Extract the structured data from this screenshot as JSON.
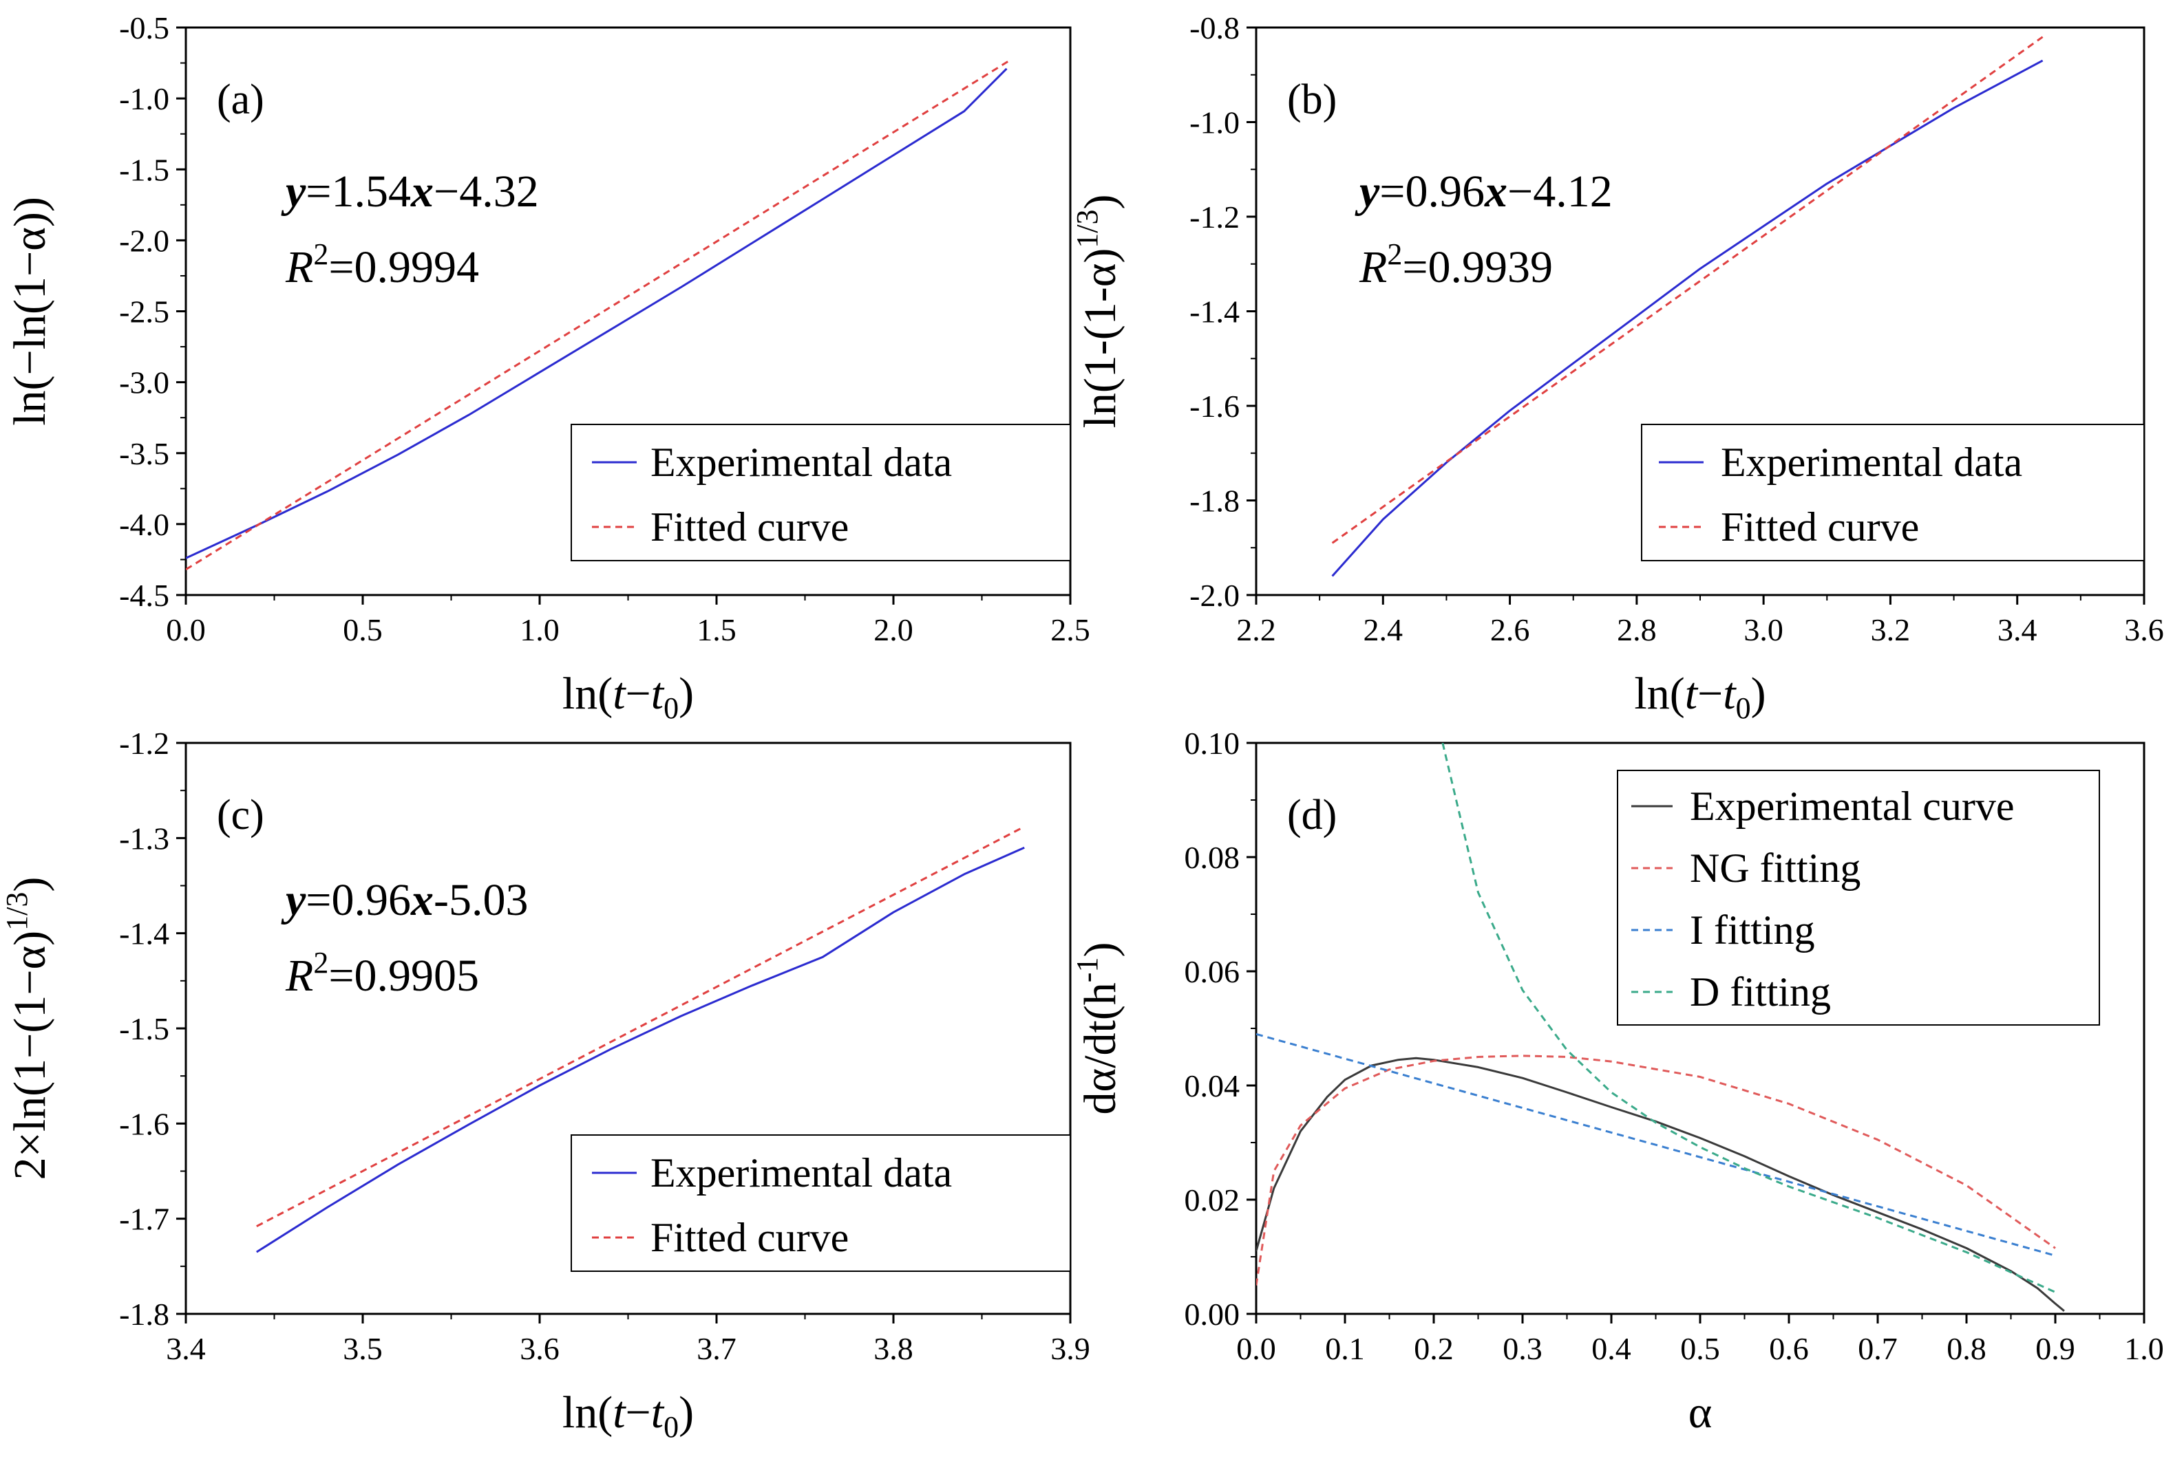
{
  "colors": {
    "experimental": "#2b2bd0",
    "fitted": "#e04040",
    "experimental_d": "#3a3a3a",
    "ng_fitting": "#e05a5a",
    "i_fitting": "#3a7fd0",
    "d_fitting": "#3aaa8a"
  },
  "chart_data": [
    {
      "panel_label": "(a)",
      "type": "line",
      "xlabel": "ln(t−t0)",
      "ylabel": "ln(−ln(1−α))",
      "xlim": [
        0.0,
        2.5
      ],
      "ylim": [
        -4.5,
        -0.5
      ],
      "xticks": [
        "0.0",
        "0.5",
        "1.0",
        "1.5",
        "2.0",
        "2.5"
      ],
      "yticks": [
        "-4.5",
        "-4.0",
        "-3.5",
        "-3.0",
        "-2.5",
        "-2.0",
        "-1.5",
        "-1.0",
        "-0.5"
      ],
      "equation": {
        "y": "y",
        "mid": "=1.54",
        "x": "x",
        "rest": "−4.32"
      },
      "r2": {
        "r": "R",
        "sup": "2",
        "rest": "=0.9994"
      },
      "legend_position": "bottom-right",
      "series": [
        {
          "name": "Experimental data",
          "style": "solid",
          "x": [
            0.0,
            0.2,
            0.4,
            0.6,
            0.8,
            1.0,
            1.2,
            1.4,
            1.6,
            1.8,
            2.0,
            2.2,
            2.32
          ],
          "y": [
            -4.24,
            -4.01,
            -3.77,
            -3.51,
            -3.23,
            -2.93,
            -2.63,
            -2.33,
            -2.02,
            -1.71,
            -1.4,
            -1.09,
            -0.79
          ]
        },
        {
          "name": "Fitted curve",
          "style": "dashed",
          "x": [
            0.0,
            2.33
          ],
          "y": [
            -4.32,
            -0.73
          ]
        }
      ]
    },
    {
      "panel_label": "(b)",
      "type": "line",
      "xlabel": "ln(t−t0)",
      "ylabel": "ln(1-(1-α)1/3)",
      "xlim": [
        2.2,
        3.6
      ],
      "ylim": [
        -2.0,
        -0.8
      ],
      "xticks": [
        "2.2",
        "2.4",
        "2.6",
        "2.8",
        "3.0",
        "3.2",
        "3.4",
        "3.6"
      ],
      "yticks": [
        "-2.0",
        "-1.8",
        "-1.6",
        "-1.4",
        "-1.2",
        "-1.0",
        "-0.8"
      ],
      "equation": {
        "y": "y",
        "mid": "=0.96",
        "x": "x",
        "rest": "−4.12"
      },
      "r2": {
        "r": "R",
        "sup": "2",
        "rest": "=0.9939"
      },
      "legend_position": "bottom-right",
      "series": [
        {
          "name": "Experimental data",
          "style": "solid",
          "x": [
            2.32,
            2.4,
            2.5,
            2.6,
            2.7,
            2.8,
            2.9,
            3.0,
            3.1,
            3.2,
            3.3,
            3.44
          ],
          "y": [
            -1.96,
            -1.84,
            -1.72,
            -1.61,
            -1.51,
            -1.41,
            -1.31,
            -1.22,
            -1.13,
            -1.05,
            -0.97,
            -0.87
          ]
        },
        {
          "name": "Fitted curve",
          "style": "dashed",
          "x": [
            2.32,
            3.44
          ],
          "y": [
            -1.89,
            -0.82
          ]
        }
      ]
    },
    {
      "panel_label": "(c)",
      "type": "line",
      "xlabel": "ln(t−t0)",
      "ylabel": "2×ln(1−(1−α)1/3)",
      "xlim": [
        3.4,
        3.9
      ],
      "ylim": [
        -1.8,
        -1.2
      ],
      "xticks": [
        "3.4",
        "3.5",
        "3.6",
        "3.7",
        "3.8",
        "3.9"
      ],
      "yticks": [
        "-1.8",
        "-1.7",
        "-1.6",
        "-1.5",
        "-1.4",
        "-1.3",
        "-1.2"
      ],
      "equation": {
        "y": "y",
        "mid": "=0.96",
        "x": "x",
        "rest": "-5.03"
      },
      "r2": {
        "r": "R",
        "sup": "2",
        "rest": "=0.9905"
      },
      "legend_position": "bottom-right",
      "series": [
        {
          "name": "Experimental data",
          "style": "solid",
          "x": [
            3.44,
            3.48,
            3.52,
            3.56,
            3.6,
            3.64,
            3.68,
            3.72,
            3.76,
            3.8,
            3.84,
            3.874
          ],
          "y": [
            -1.735,
            -1.688,
            -1.643,
            -1.601,
            -1.56,
            -1.522,
            -1.487,
            -1.455,
            -1.425,
            -1.378,
            -1.338,
            -1.31
          ]
        },
        {
          "name": "Fitted curve",
          "style": "dashed",
          "x": [
            3.44,
            3.874
          ],
          "y": [
            -1.708,
            -1.288
          ]
        }
      ]
    },
    {
      "panel_label": "(d)",
      "type": "line",
      "xlabel": "α",
      "ylabel": "dα/dt(h-1)",
      "xlim": [
        0.0,
        1.0
      ],
      "ylim": [
        0.0,
        0.1
      ],
      "xticks": [
        "0.0",
        "0.1",
        "0.2",
        "0.3",
        "0.4",
        "0.5",
        "0.6",
        "0.7",
        "0.8",
        "0.9",
        "1.0"
      ],
      "yticks": [
        "0.00",
        "0.02",
        "0.04",
        "0.06",
        "0.08",
        "0.10"
      ],
      "legend_position": "top-right",
      "series": [
        {
          "name": "Experimental curve",
          "style": "solid",
          "x": [
            0.0,
            0.02,
            0.05,
            0.08,
            0.1,
            0.13,
            0.16,
            0.18,
            0.2,
            0.25,
            0.3,
            0.35,
            0.4,
            0.45,
            0.5,
            0.55,
            0.6,
            0.65,
            0.7,
            0.75,
            0.8,
            0.85,
            0.88,
            0.9,
            0.91
          ],
          "y": [
            0.011,
            0.022,
            0.032,
            0.038,
            0.041,
            0.0435,
            0.0445,
            0.0448,
            0.0445,
            0.0432,
            0.0413,
            0.0388,
            0.0362,
            0.0337,
            0.0308,
            0.0276,
            0.0241,
            0.0208,
            0.0178,
            0.0148,
            0.0115,
            0.0075,
            0.0045,
            0.0018,
            0.0005
          ]
        },
        {
          "name": "NG fitting",
          "style": "dashed",
          "x": [
            0.0,
            0.02,
            0.05,
            0.1,
            0.15,
            0.2,
            0.25,
            0.3,
            0.35,
            0.4,
            0.5,
            0.6,
            0.7,
            0.8,
            0.9
          ],
          "y": [
            0.005,
            0.025,
            0.033,
            0.0395,
            0.0428,
            0.0443,
            0.045,
            0.0452,
            0.045,
            0.0442,
            0.0415,
            0.0368,
            0.0305,
            0.0225,
            0.0115
          ]
        },
        {
          "name": "I fitting",
          "style": "dashed",
          "x": [
            0.0,
            0.9
          ],
          "y": [
            0.049,
            0.0102
          ]
        },
        {
          "name": "D fitting",
          "style": "dashed",
          "x": [
            0.21,
            0.25,
            0.3,
            0.35,
            0.4,
            0.45,
            0.5,
            0.55,
            0.6,
            0.7,
            0.8,
            0.9
          ],
          "y": [
            0.1,
            0.0738,
            0.0567,
            0.0462,
            0.0388,
            0.0335,
            0.0292,
            0.0255,
            0.0223,
            0.0168,
            0.0108,
            0.0038
          ]
        }
      ]
    }
  ]
}
